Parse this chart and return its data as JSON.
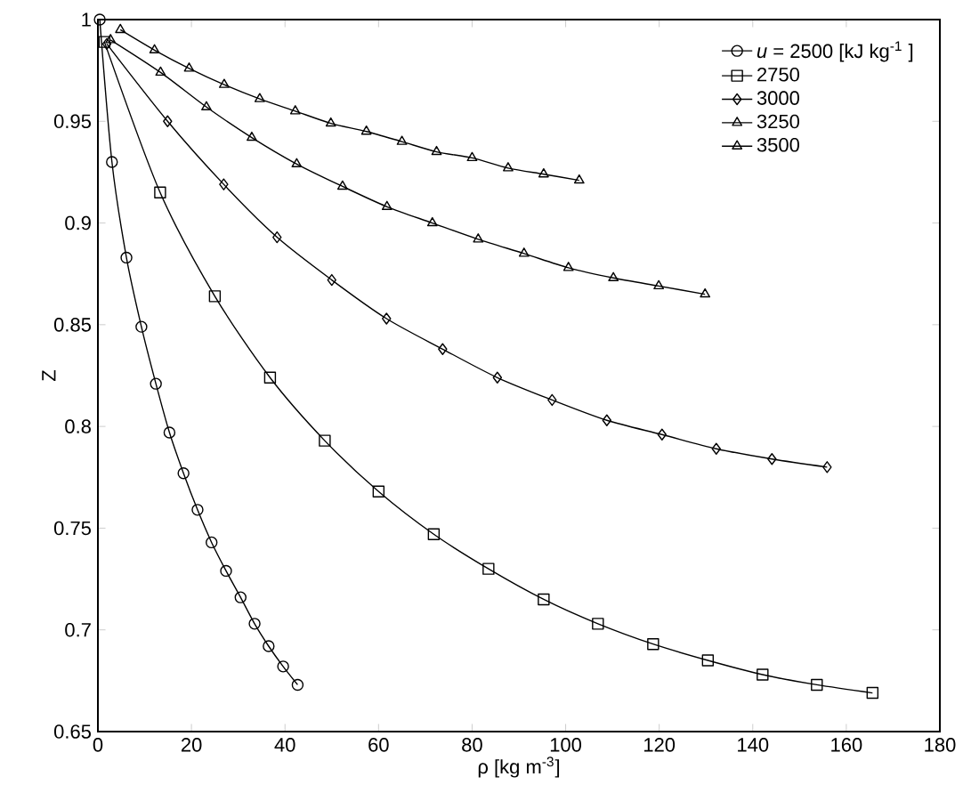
{
  "chart_data": {
    "type": "line",
    "xlabel": "ρ [kg m$^{-3}$]",
    "ylabel": "Z",
    "xlim": [
      0,
      180
    ],
    "ylim": [
      0.65,
      1
    ],
    "xticks": [
      0,
      20,
      40,
      60,
      80,
      100,
      120,
      140,
      160,
      180
    ],
    "yticks": [
      0.65,
      0.7,
      0.75,
      0.8,
      0.85,
      0.9,
      0.95,
      1
    ],
    "grid": false,
    "legend": "top right",
    "line_style": "solid",
    "series": [
      {
        "name": "*u* = 2500  [kJ kg$^{-1}$ ]",
        "color": "#000000",
        "marker": "circle",
        "x": [
          0.4,
          3.0,
          6.1,
          9.3,
          12.4,
          15.3,
          18.3,
          21.3,
          24.3,
          27.4,
          30.5,
          33.5,
          36.5,
          39.6,
          42.7
        ],
        "values": [
          1.0,
          0.93,
          0.883,
          0.849,
          0.821,
          0.797,
          0.777,
          0.759,
          0.743,
          0.729,
          0.716,
          0.703,
          0.692,
          0.682,
          0.673
        ]
      },
      {
        "name": "2750",
        "color": "#000000",
        "marker": "square",
        "x": [
          1.4,
          13.3,
          25.0,
          36.8,
          48.5,
          60.0,
          71.8,
          83.5,
          95.3,
          106.9,
          118.7,
          130.4,
          142.1,
          153.7,
          165.6
        ],
        "values": [
          0.989,
          0.915,
          0.864,
          0.824,
          0.793,
          0.768,
          0.747,
          0.73,
          0.715,
          0.703,
          0.693,
          0.685,
          0.678,
          0.673,
          0.669
        ]
      },
      {
        "name": "3000",
        "color": "#000000",
        "marker": "diamond",
        "x": [
          1.9,
          14.9,
          26.9,
          38.3,
          50.0,
          61.7,
          73.7,
          85.4,
          97.1,
          108.8,
          120.6,
          132.2,
          144.1,
          155.9
        ],
        "values": [
          0.988,
          0.95,
          0.919,
          0.893,
          0.872,
          0.853,
          0.838,
          0.824,
          0.813,
          0.803,
          0.796,
          0.789,
          0.784,
          0.78
        ]
      },
      {
        "name": "3250",
        "color": "#000000",
        "marker": "triangle",
        "x": [
          2.7,
          13.4,
          23.2,
          32.9,
          42.5,
          52.3,
          61.8,
          71.5,
          81.3,
          91.1,
          100.6,
          110.2,
          119.9,
          129.8
        ],
        "values": [
          0.99,
          0.974,
          0.957,
          0.942,
          0.929,
          0.918,
          0.908,
          0.9,
          0.892,
          0.885,
          0.878,
          0.873,
          0.869,
          0.865
        ]
      },
      {
        "name": "3500",
        "color": "#000000",
        "marker": "triangle-down",
        "x": [
          4.8,
          12.1,
          19.5,
          27.0,
          34.6,
          42.2,
          49.8,
          57.4,
          65.0,
          72.4,
          80.0,
          87.7,
          95.3,
          102.9
        ],
        "values": [
          0.995,
          0.985,
          0.976,
          0.968,
          0.961,
          0.955,
          0.949,
          0.945,
          0.94,
          0.935,
          0.932,
          0.927,
          0.924,
          0.921
        ]
      }
    ]
  }
}
